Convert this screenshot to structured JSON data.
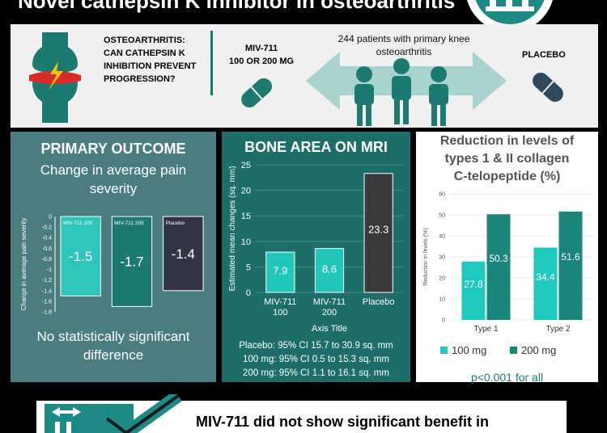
{
  "header": {
    "title": "Novel cathepsin K inhibitor in osteoarthritis"
  },
  "intro": {
    "question": [
      "OSTEOARTHRITIS:",
      "CAN CATHEPSIN K",
      "INHIBITION PREVENT",
      "PROGRESSION?"
    ],
    "drug_label": [
      "MIV-711",
      "100 OR 200 MG"
    ],
    "patients_text": [
      "244 patients with primary knee",
      "osteoarthritis"
    ],
    "placebo_label": "PLACEBO"
  },
  "panels": {
    "primary": {
      "title": "PRIMARY OUTCOME",
      "subtitle": [
        "Change in average pain",
        "severity"
      ],
      "conclusion": [
        "No statistically significant",
        "difference"
      ]
    },
    "bone": {
      "title": "BONE AREA ON MRI",
      "notes": [
        "Placebo: 95% CI 15.7 to 30.9 sq. mm",
        "100 mg: 95% CI 0.5 to 15.3 sq. mm",
        "200 mg: 95% CI 1.1 to 16.1 sq. mm"
      ]
    },
    "collagen": {
      "title": [
        "Reduction in levels of",
        "types 1 & II collagen",
        "C-telopeptide (%)"
      ],
      "pvalue": "p<0.001 for all"
    }
  },
  "footer": {
    "text": "MIV-711 did not show significant benefit in"
  },
  "colors": {
    "teal_dark": "#4a7d80",
    "teal_mid": "#1d7a71",
    "teal_bright": "#1ec9be",
    "dark_gray": "#3a3a3a",
    "navy": "#1f3b57"
  },
  "chart_data": [
    {
      "type": "bar",
      "categories": [
        "MIV-711 100",
        "MIV-711 200",
        "Placebo"
      ],
      "values": [
        -1.5,
        -1.7,
        -1.4
      ],
      "ylabel": "Change in average pain severity",
      "ylim": [
        -1.8,
        0
      ],
      "yticks": [
        "0",
        "-0.2",
        "-0.4",
        "-0.6",
        "-0.8",
        "-1",
        "-1.2",
        "-1.4",
        "-1.6",
        "-1.8"
      ],
      "value_labels": [
        "-1.5",
        "-1.7",
        "-1.4"
      ],
      "colors": [
        "#2ec5ba",
        "#1d7a71",
        "#303444"
      ]
    },
    {
      "type": "bar",
      "categories": [
        [
          "MIV-711",
          "100"
        ],
        [
          "MIV-711",
          "200"
        ],
        [
          "Placebo"
        ]
      ],
      "values": [
        7.9,
        8.6,
        23.3
      ],
      "ylabel": "Estimated mean changes (sq. mm)",
      "xlabel": "Axis Title",
      "ylim": [
        0,
        25
      ],
      "yticks": [
        "0",
        "5",
        "10",
        "15",
        "20",
        "25"
      ],
      "value_labels": [
        "7.9",
        "8.6",
        "23.3"
      ],
      "colors": [
        "#22c7bc",
        "#22c7bc",
        "#3a3a3a"
      ]
    },
    {
      "type": "bar",
      "categories": [
        "Type 1",
        "Type 2"
      ],
      "series": [
        {
          "name": "100 mg",
          "values": [
            27.8,
            34.4
          ]
        },
        {
          "name": "200 mg",
          "values": [
            50.3,
            51.6
          ]
        }
      ],
      "ylabel": "Reduction in levels (%)",
      "ylim": [
        0,
        60
      ],
      "yticks": [
        "0",
        "10",
        "20",
        "30",
        "40",
        "50",
        "60"
      ],
      "value_labels": [
        [
          "27.8",
          "34.4"
        ],
        [
          "50.3",
          "51.6"
        ]
      ],
      "legend": "bottom",
      "colors": [
        "#1ec9be",
        "#1a857b"
      ]
    }
  ]
}
